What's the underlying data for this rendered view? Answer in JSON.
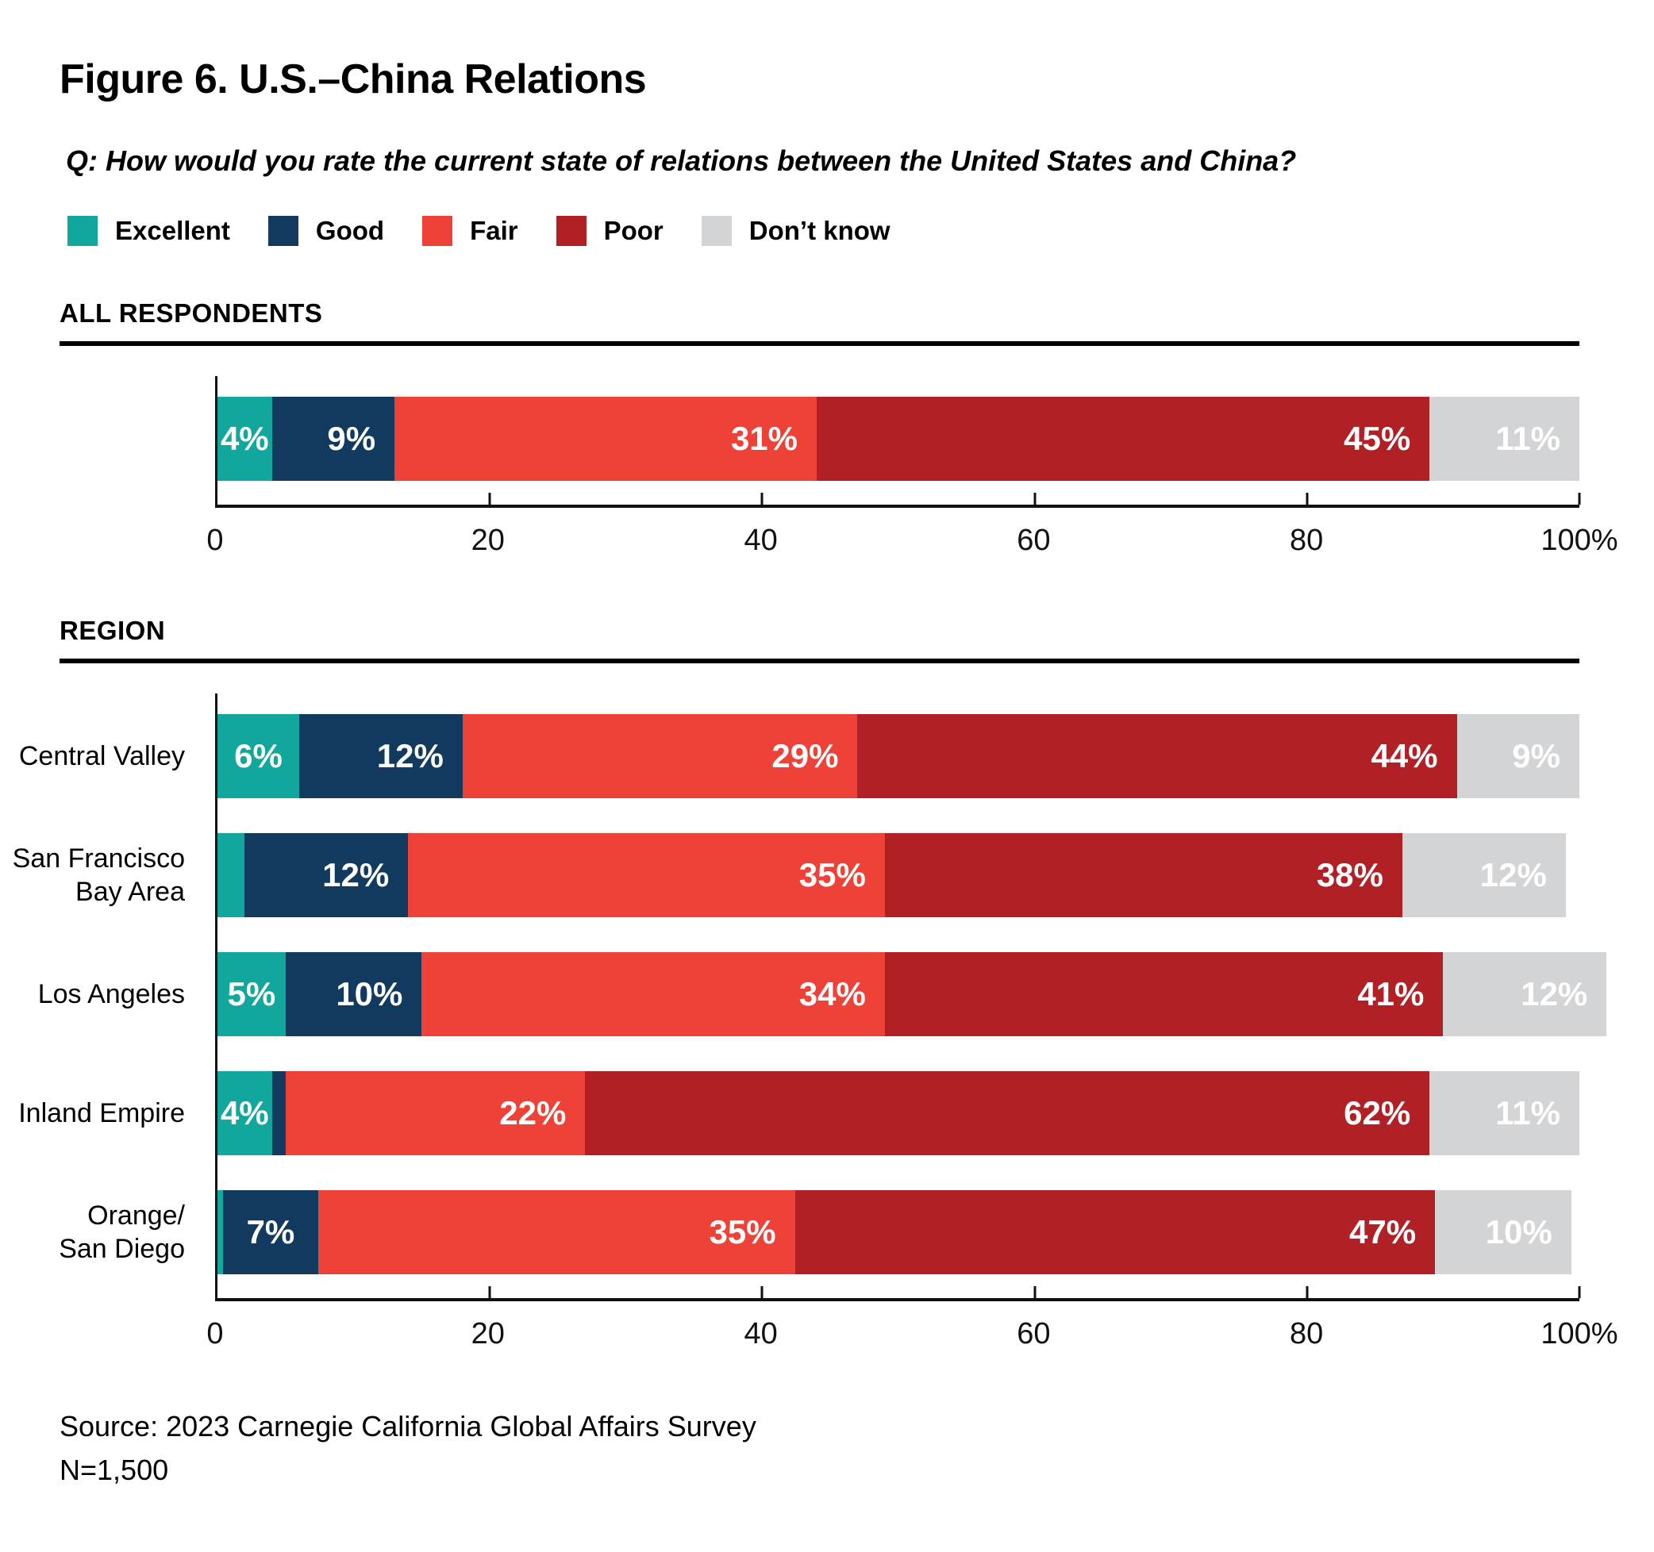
{
  "figure": {
    "title": "Figure 6. U.S.–China Relations",
    "question": "Q: How would you rate the current state of relations between the United States and China?",
    "source": "Source: 2023 Carnegie California Global Affairs Survey",
    "sample_size": "N=1,500"
  },
  "legend": {
    "items": [
      {
        "key": "excellent",
        "label": "Excellent",
        "color": "#12A79C"
      },
      {
        "key": "good",
        "label": "Good",
        "color": "#113A5E"
      },
      {
        "key": "fair",
        "label": "Fair",
        "color": "#EE4137"
      },
      {
        "key": "poor",
        "label": "Poor",
        "color": "#B12025"
      },
      {
        "key": "dont_know",
        "label": "Don’t know",
        "color": "#D3D4D6"
      }
    ]
  },
  "chart_data": [
    {
      "type": "bar",
      "orientation": "horizontal",
      "stacked": true,
      "grid": false,
      "legend_position": "top",
      "section": "ALL RESPONDENTS",
      "categories": [
        ""
      ],
      "series": [
        {
          "name": "Excellent",
          "key": "excellent",
          "values": [
            4
          ],
          "labels": [
            "4%"
          ]
        },
        {
          "name": "Good",
          "key": "good",
          "values": [
            9
          ],
          "labels": [
            "9%"
          ]
        },
        {
          "name": "Fair",
          "key": "fair",
          "values": [
            31
          ],
          "labels": [
            "31%"
          ]
        },
        {
          "name": "Poor",
          "key": "poor",
          "values": [
            45
          ],
          "labels": [
            "45%"
          ]
        },
        {
          "name": "Don’t know",
          "key": "dont_know",
          "values": [
            11
          ],
          "labels": [
            "11%"
          ]
        }
      ],
      "xlim": [
        0,
        100
      ],
      "ticks": [
        {
          "pos": 0,
          "label": "0"
        },
        {
          "pos": 20,
          "label": "20"
        },
        {
          "pos": 40,
          "label": "40"
        },
        {
          "pos": 60,
          "label": "60"
        },
        {
          "pos": 80,
          "label": "80"
        },
        {
          "pos": 100,
          "label": "100%"
        }
      ]
    },
    {
      "type": "bar",
      "orientation": "horizontal",
      "stacked": true,
      "grid": false,
      "section": "REGION",
      "categories": [
        "Central Valley",
        "San Francisco\nBay Area",
        "Los Angeles",
        "Inland Empire",
        "Orange/\nSan Diego"
      ],
      "series": [
        {
          "name": "Excellent",
          "key": "excellent",
          "values": [
            6,
            2,
            5,
            4,
            0.4
          ],
          "labels": [
            "6%",
            "",
            "5%",
            "4%",
            ""
          ]
        },
        {
          "name": "Good",
          "key": "good",
          "values": [
            12,
            12,
            10,
            1,
            7
          ],
          "labels": [
            "12%",
            "12%",
            "10%",
            "",
            "7%"
          ]
        },
        {
          "name": "Fair",
          "key": "fair",
          "values": [
            29,
            35,
            34,
            22,
            35
          ],
          "labels": [
            "29%",
            "35%",
            "34%",
            "22%",
            "35%"
          ]
        },
        {
          "name": "Poor",
          "key": "poor",
          "values": [
            44,
            38,
            41,
            62,
            47
          ],
          "labels": [
            "44%",
            "38%",
            "41%",
            "62%",
            "47%"
          ]
        },
        {
          "name": "Don’t know",
          "key": "dont_know",
          "values": [
            9,
            12,
            12,
            11,
            10
          ],
          "labels": [
            "9%",
            "12%",
            "12%",
            "11%",
            "10%"
          ]
        }
      ],
      "xlim": [
        0,
        100
      ],
      "ticks": [
        {
          "pos": 0,
          "label": "0"
        },
        {
          "pos": 20,
          "label": "20"
        },
        {
          "pos": 40,
          "label": "40"
        },
        {
          "pos": 60,
          "label": "60"
        },
        {
          "pos": 80,
          "label": "80"
        },
        {
          "pos": 100,
          "label": "100%"
        }
      ]
    }
  ]
}
